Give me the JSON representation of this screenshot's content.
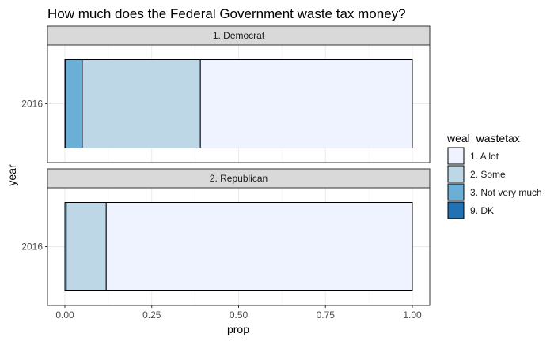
{
  "chart_data": {
    "type": "bar",
    "orientation": "horizontal",
    "stacked": true,
    "title": "How much does the Federal Government waste tax money?",
    "xlabel": "prop",
    "ylabel": "year",
    "xlim": [
      0,
      1
    ],
    "x_ticks": [
      "0.00",
      "0.25",
      "0.50",
      "0.75",
      "1.00"
    ],
    "grid": true,
    "legend": {
      "title": "weal_wastetax",
      "position": "right",
      "items": [
        {
          "label": "1. A lot",
          "color": "#eff3ff"
        },
        {
          "label": "2. Some",
          "color": "#bdd7e7"
        },
        {
          "label": "3. Not very much",
          "color": "#6baed6"
        },
        {
          "label": "9. DK",
          "color": "#2171b5"
        }
      ]
    },
    "facets": [
      {
        "label": "1. Democrat",
        "category": "2016",
        "segments": [
          {
            "name": "9. DK",
            "value": 0.003,
            "color": "#2171b5"
          },
          {
            "name": "3. Not very much",
            "value": 0.047,
            "color": "#6baed6"
          },
          {
            "name": "2. Some",
            "value": 0.34,
            "color": "#bdd7e7"
          },
          {
            "name": "1. A lot",
            "value": 0.61,
            "color": "#eff3ff"
          }
        ]
      },
      {
        "label": "2. Republican",
        "category": "2016",
        "segments": [
          {
            "name": "9. DK",
            "value": 0.0,
            "color": "#2171b5"
          },
          {
            "name": "3. Not very much",
            "value": 0.004,
            "color": "#6baed6"
          },
          {
            "name": "2. Some",
            "value": 0.115,
            "color": "#bdd7e7"
          },
          {
            "name": "1. A lot",
            "value": 0.881,
            "color": "#eff3ff"
          }
        ]
      }
    ]
  }
}
